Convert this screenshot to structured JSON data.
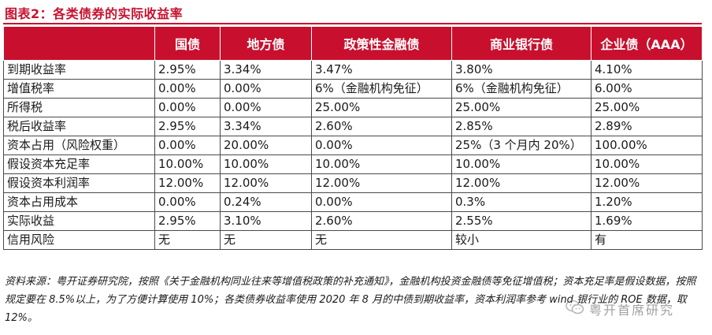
{
  "title": "图表2：各类债券的实际收益率",
  "table": {
    "headers": [
      "",
      "国债",
      "地方债",
      "政策性金融债",
      "商业银行债",
      "企业债（AAA）"
    ],
    "rows": [
      [
        "到期收益率",
        "2.95%",
        "3.34%",
        "3.47%",
        "3.80%",
        "4.10%"
      ],
      [
        "增值税率",
        "0.00%",
        "0.00%",
        "6%（金融机构免征）",
        "6%（金融机构免征）",
        "6.00%"
      ],
      [
        "所得税",
        "0.00%",
        "0.00%",
        "25.00%",
        "25.00%",
        "25.00%"
      ],
      [
        "税后收益率",
        "2.95%",
        "3.34%",
        "2.60%",
        "2.85%",
        "2.89%"
      ],
      [
        "资本占用（风险权重）",
        "0.00%",
        "20.00%",
        "0.00%",
        "25%（3 个月内 20%）",
        "100.00%"
      ],
      [
        "假设资本充足率",
        "10.00%",
        "10.00%",
        "10.00%",
        "10.00%",
        "10.00%"
      ],
      [
        "假设资本利润率",
        "12.00%",
        "12.00%",
        "12.00%",
        "12.00%",
        "12.00%"
      ],
      [
        "资本占用成本",
        "0.00%",
        "0.24%",
        "0.00%",
        "0.3%",
        "1.20%"
      ],
      [
        "实际收益",
        "2.95%",
        "3.10%",
        "2.60%",
        "2.55%",
        "1.69%"
      ],
      [
        "信用风险",
        "无",
        "无",
        "无",
        "较小",
        "有"
      ]
    ]
  },
  "note": "资料来源：粤开证券研究院，按照《关于金融机构同业往来等增值税政策的补充通知》，金融机构投资金融债等免征增值税；资本充足率是假设数据，按照规定要在 8.5%以上，为了方便计算使用 10%；各类债券收益率使用 2020 年 8 月的中债到期收益率，资本利润率参考 wind 银行业的 ROE 数据，取 12%。",
  "watermark": {
    "text": "粤开首席研究",
    "icon": "wechat-icon"
  },
  "colors": {
    "accent": "#c8102e",
    "header_text": "#ffffff"
  }
}
